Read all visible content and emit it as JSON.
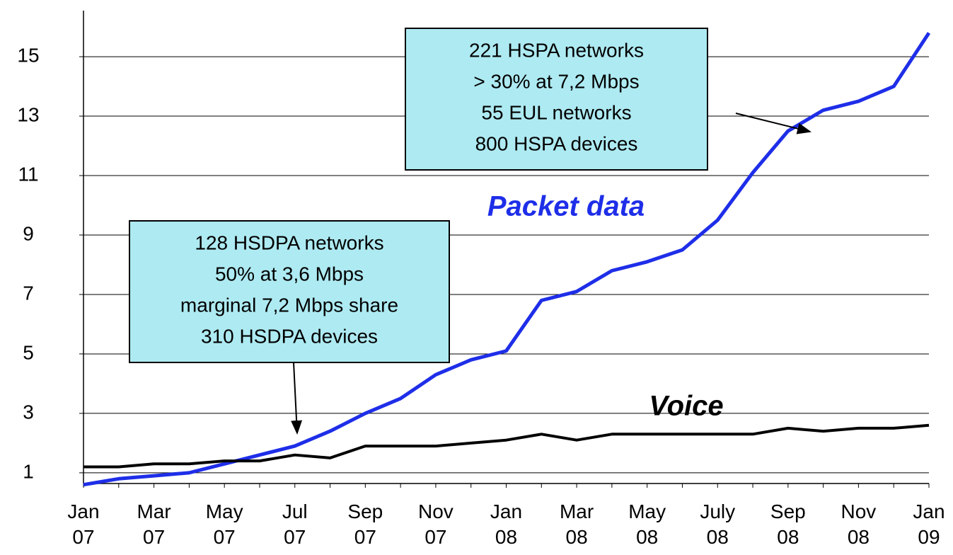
{
  "chart_data": {
    "type": "line",
    "categories": [
      "Jan 07",
      null,
      "Mar 07",
      null,
      "May 07",
      null,
      "Jul 07",
      null,
      "Sep 07",
      null,
      "Nov 07",
      null,
      "Jan 08",
      null,
      "Mar 08",
      null,
      "May 08",
      null,
      "July 08",
      null,
      "Sep 08",
      null,
      "Nov 08",
      null,
      "Jan 09"
    ],
    "series": [
      {
        "name": "Packet data",
        "color": "#1e2ee8",
        "values": [
          0.6,
          0.8,
          0.9,
          1.0,
          1.3,
          1.6,
          1.9,
          2.4,
          3.0,
          3.5,
          4.3,
          4.8,
          5.1,
          6.8,
          7.1,
          7.8,
          8.1,
          8.5,
          9.5,
          11.1,
          12.5,
          13.2,
          13.5,
          14.0,
          15.8
        ]
      },
      {
        "name": "Voice",
        "color": "#000000",
        "values": [
          1.2,
          1.2,
          1.3,
          1.3,
          1.4,
          1.4,
          1.6,
          1.5,
          1.9,
          1.9,
          1.9,
          2.0,
          2.1,
          2.3,
          2.1,
          2.3,
          2.3,
          2.3,
          2.3,
          2.3,
          2.5,
          2.4,
          2.5,
          2.5,
          2.6
        ]
      }
    ],
    "ylim": [
      0.64,
      16.55
    ],
    "yticks": [
      1,
      3,
      5,
      7,
      9,
      11,
      13,
      15
    ],
    "grid": true,
    "annotations": [
      {
        "lines": [
          "221 HSPA networks",
          "> 30% at 7,2 Mbps",
          "55 EUL networks",
          "800 HSPA devices"
        ]
      },
      {
        "lines": [
          "128 HSDPA networks",
          "50% at 3,6 Mbps",
          "marginal 7,2 Mbps share",
          "310 HSDPA devices"
        ]
      }
    ]
  }
}
